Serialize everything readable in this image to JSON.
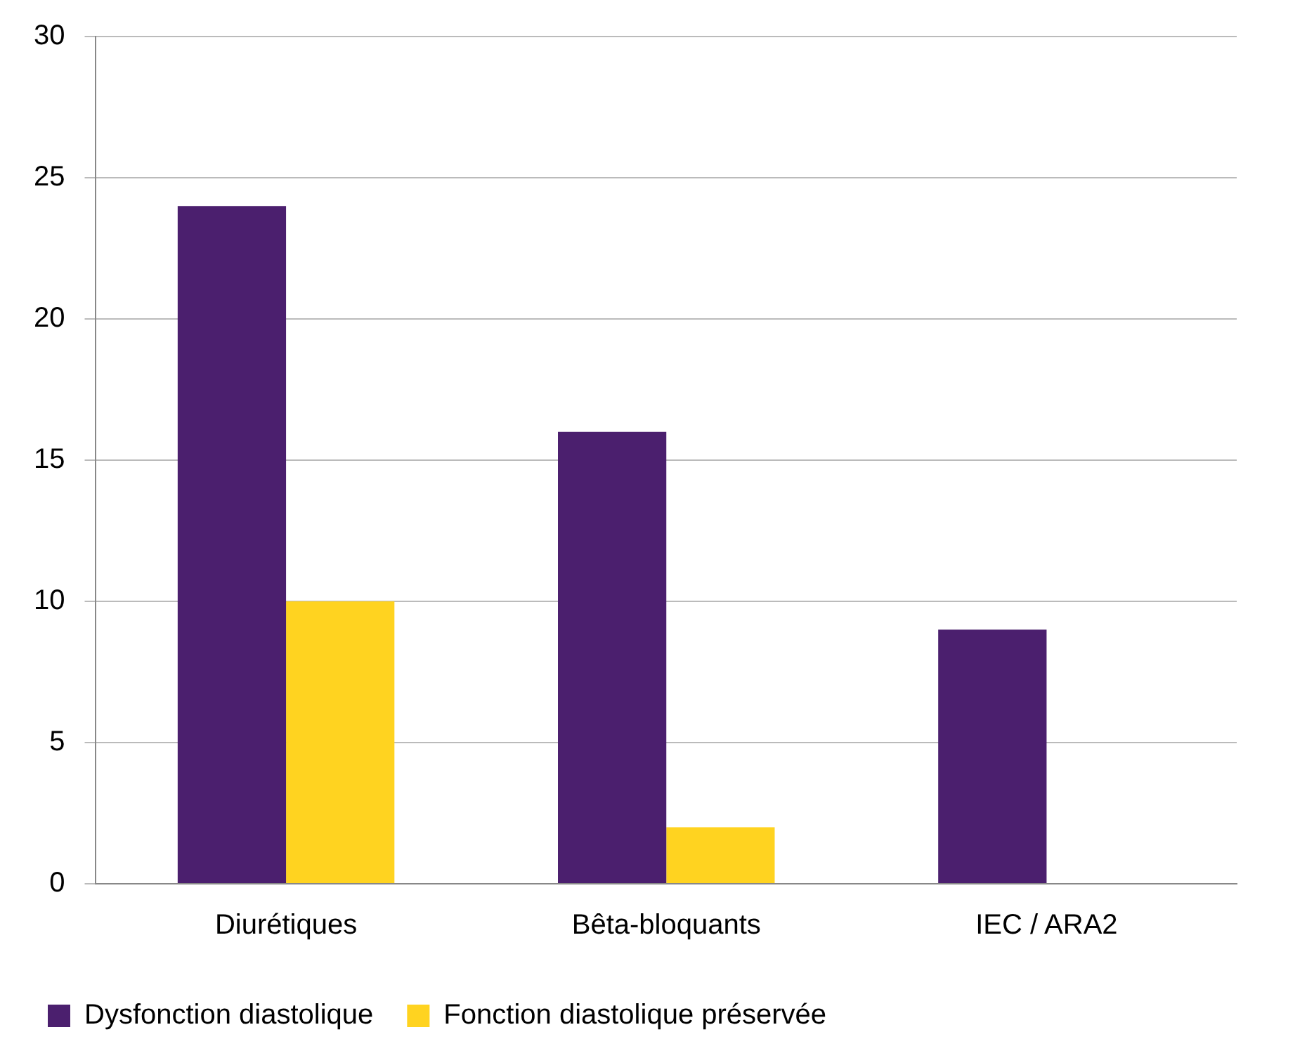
{
  "chart_data": {
    "type": "bar",
    "categories": [
      "Diurétiques",
      "Bêta-bloquants",
      "IEC / ARA2"
    ],
    "series": [
      {
        "name": "Dysfonction diastolique",
        "color": "#4b1f6e",
        "values": [
          24,
          16,
          9
        ]
      },
      {
        "name": "Fonction diastolique préservée",
        "color": "#ffd320",
        "values": [
          10,
          2,
          0
        ]
      }
    ],
    "ylim": [
      0,
      30
    ],
    "yticks": [
      0,
      5,
      10,
      15,
      20,
      25,
      30
    ],
    "grid": "y",
    "legend": "bottom"
  }
}
